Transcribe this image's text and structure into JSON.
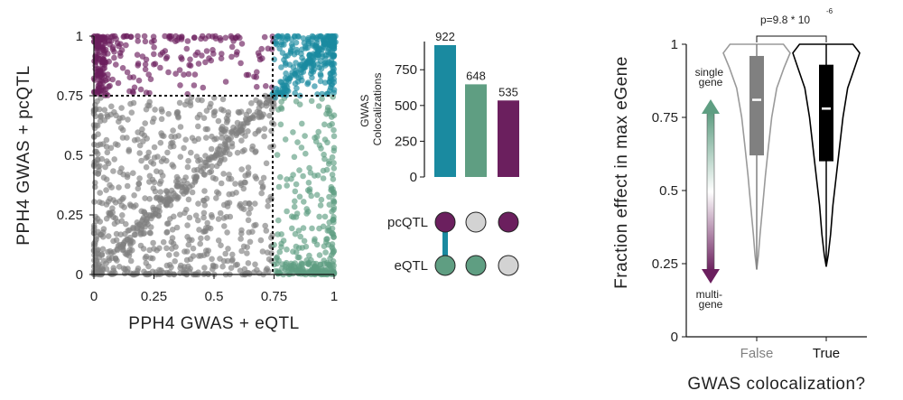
{
  "colors": {
    "purple": "#6b1f5e",
    "teal": "#1a8aa0",
    "green": "#5f9e82",
    "gray": "#808080",
    "light_gray": "#d3d3d3",
    "black": "#000000"
  },
  "chart_data": [
    {
      "type": "scatter",
      "xlabel": "PPH4 GWAS + eQTL",
      "ylabel": "PPH4 GWAS + pcQTL",
      "xlim": [
        0,
        1
      ],
      "ylim": [
        0,
        1
      ],
      "xticks": [
        "0",
        "0.25",
        "0.5",
        "0.75",
        "1"
      ],
      "yticks": [
        "0",
        "0.25",
        "0.5",
        "0.75",
        "1"
      ],
      "threshold": 0.75,
      "point_groups": [
        {
          "color": "purple",
          "x_range": [
            0,
            0.75
          ],
          "y_range": [
            0.75,
            1
          ]
        },
        {
          "color": "teal",
          "x_range": [
            0.75,
            1
          ],
          "y_range": [
            0.75,
            1
          ]
        },
        {
          "color": "green",
          "x_range": [
            0.75,
            1
          ],
          "y_range": [
            0,
            0.75
          ]
        },
        {
          "color": "gray",
          "x_range": [
            0,
            0.75
          ],
          "y_range": [
            0,
            0.75
          ]
        }
      ]
    },
    {
      "type": "bar",
      "ylabel": "GWAS\nColocalizations",
      "ylim": [
        0,
        922
      ],
      "yticks": [
        "0",
        "250",
        "500",
        "750"
      ],
      "values": [
        922,
        648,
        535
      ],
      "value_labels": [
        "922",
        "648",
        "535"
      ],
      "bar_colors": [
        "teal",
        "green",
        "purple"
      ],
      "matrix_rows": [
        "pcQTL",
        "eQTL"
      ],
      "matrix": [
        [
          true,
          false,
          true
        ],
        [
          true,
          true,
          false
        ]
      ]
    },
    {
      "type": "violin",
      "xlabel": "GWAS colocalization?",
      "ylabel": "Fraction effect in max eGene",
      "categories": [
        "False",
        "True"
      ],
      "ylim": [
        0,
        1
      ],
      "yticks": [
        "0",
        "0.25",
        "0.5",
        "0.75",
        "1"
      ],
      "boxes": [
        {
          "category": "False",
          "min": 0.23,
          "q1": 0.62,
          "median": 0.81,
          "q3": 0.96,
          "max": 1.0
        },
        {
          "category": "True",
          "min": 0.24,
          "q1": 0.6,
          "median": 0.78,
          "q3": 0.93,
          "max": 1.0
        }
      ],
      "annotation_p": "p=9.8 * 10",
      "annotation_exp": "-6",
      "arrow_top_label": "single\ngene",
      "arrow_bottom_label": "multi-\ngene"
    }
  ]
}
